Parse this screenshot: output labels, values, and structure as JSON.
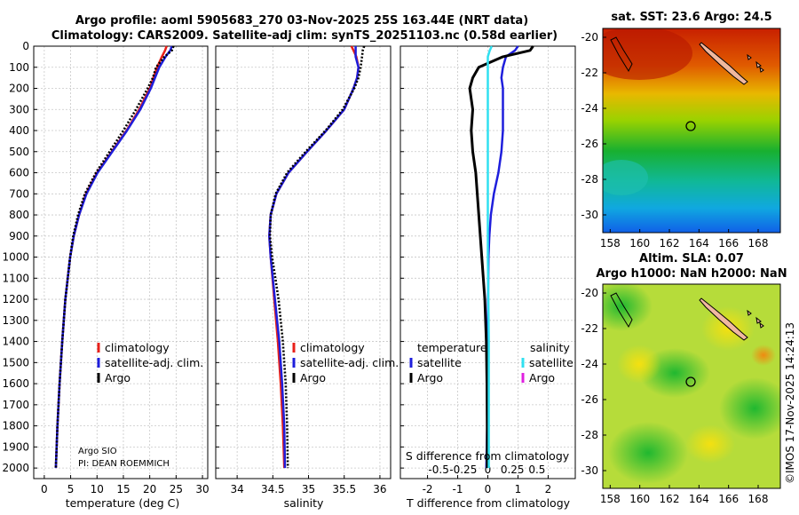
{
  "title_line1": "Argo profile: aoml 5905683_270 03-Nov-2025 25S 163.44E (NRT data)",
  "title_line2": "Climatology: CARS2009. Satellite-adj clim: synTS_20251103.nc (0.58d earlier)",
  "footer_stamp": "©IMOS 17-Nov-2025 14:24:13",
  "colors": {
    "climatology": "#e8201a",
    "satellite": "#1e1edc",
    "argo": "#000000",
    "sat_salinity": "#30e0f0",
    "argo_salinity": "#e020e0"
  },
  "chart_data": [
    {
      "type": "line",
      "name": "temperature",
      "xlabel": "temperature (deg C)",
      "ylabel": "",
      "xlim": [
        -2,
        31
      ],
      "ylim": [
        2050,
        0
      ],
      "xticks": [
        "0",
        "5",
        "10",
        "15",
        "20",
        "25",
        "30"
      ],
      "xtick_values": [
        0,
        5,
        10,
        15,
        20,
        25,
        30
      ],
      "yticks": [
        "0",
        "100",
        "200",
        "300",
        "400",
        "500",
        "600",
        "700",
        "800",
        "900",
        "1000",
        "1100",
        "1200",
        "1300",
        "1400",
        "1500",
        "1600",
        "1700",
        "1800",
        "1900",
        "2000"
      ],
      "ytick_values": [
        0,
        100,
        200,
        300,
        400,
        500,
        600,
        700,
        800,
        900,
        1000,
        1100,
        1200,
        1300,
        1400,
        1500,
        1600,
        1700,
        1800,
        1900,
        2000
      ],
      "depth": [
        0,
        20,
        50,
        100,
        150,
        200,
        300,
        400,
        500,
        600,
        700,
        800,
        900,
        1000,
        1200,
        1400,
        1600,
        1800,
        2000
      ],
      "series": [
        {
          "name": "climatology",
          "values": [
            23.2,
            22.9,
            22.3,
            21.4,
            20.7,
            20.0,
            18.0,
            15.6,
            12.8,
            10.0,
            7.9,
            6.6,
            5.6,
            4.9,
            4.0,
            3.4,
            2.9,
            2.5,
            2.2
          ]
        },
        {
          "name": "satellite-adj. clim.",
          "values": [
            24.2,
            23.9,
            23.0,
            21.8,
            21.0,
            20.2,
            18.2,
            15.7,
            12.9,
            10.1,
            8.0,
            6.6,
            5.6,
            4.9,
            4.0,
            3.4,
            2.9,
            2.5,
            2.2
          ]
        },
        {
          "name": "Argo",
          "values": [
            24.5,
            24.2,
            22.8,
            21.2,
            20.6,
            19.6,
            17.4,
            15.0,
            12.4,
            9.8,
            7.7,
            6.4,
            5.5,
            4.9,
            4.0,
            3.4,
            2.9,
            2.5,
            2.2
          ]
        }
      ],
      "legend": [
        "climatology",
        "satellite-adj. clim.",
        "Argo"
      ],
      "annotation_1": "Argo SIO",
      "annotation_2": "PI: DEAN ROEMMICH"
    },
    {
      "type": "line",
      "name": "salinity",
      "xlabel": "salinity",
      "xlim": [
        33.7,
        36.15
      ],
      "ylim": [
        2050,
        0
      ],
      "xticks": [
        "34",
        "34.5",
        "35",
        "35.5",
        "36"
      ],
      "xtick_values": [
        34,
        34.5,
        35,
        35.5,
        36
      ],
      "depth": [
        0,
        20,
        50,
        100,
        150,
        200,
        300,
        400,
        500,
        600,
        700,
        800,
        900,
        1000,
        1200,
        1400,
        1600,
        1800,
        2000
      ],
      "series": [
        {
          "name": "climatology",
          "values": [
            35.6,
            35.63,
            35.67,
            35.7,
            35.68,
            35.63,
            35.5,
            35.25,
            34.98,
            34.72,
            34.55,
            34.47,
            34.45,
            34.47,
            34.52,
            34.57,
            34.61,
            34.64,
            34.66
          ]
        },
        {
          "name": "satellite-adj. clim.",
          "values": [
            35.66,
            35.66,
            35.66,
            35.7,
            35.68,
            35.63,
            35.5,
            35.25,
            34.98,
            34.72,
            34.55,
            34.47,
            34.45,
            34.47,
            34.53,
            34.59,
            34.63,
            34.66,
            34.67
          ]
        },
        {
          "name": "Argo",
          "values": [
            35.78,
            35.76,
            35.75,
            35.73,
            35.7,
            35.64,
            35.48,
            35.24,
            34.96,
            34.7,
            34.54,
            34.47,
            34.46,
            34.49,
            34.58,
            34.64,
            34.68,
            34.7,
            34.71
          ]
        }
      ],
      "legend": [
        "climatology",
        "satellite-adj. clim.",
        "Argo"
      ]
    },
    {
      "type": "line",
      "name": "differences",
      "xlabel": "T difference from climatology",
      "xlabel2": "S difference from climatology",
      "xlim": [
        -2.9,
        2.9
      ],
      "ylim": [
        2050,
        0
      ],
      "xticks": [
        "-2",
        "-1",
        "0",
        "1",
        "2"
      ],
      "xtick_values": [
        -2,
        -1,
        0,
        1,
        2
      ],
      "top_xticks": [
        "-0.5",
        "-0.25",
        "0",
        "0.25",
        "0.5"
      ],
      "top_xtick_values": [
        -0.5,
        -0.25,
        0,
        0.25,
        0.5
      ],
      "depth": [
        0,
        20,
        50,
        100,
        150,
        200,
        300,
        400,
        500,
        600,
        700,
        800,
        900,
        1000,
        1200,
        1400,
        1600,
        1800,
        2000
      ],
      "series": [
        {
          "name": "T satellite",
          "values": [
            1.0,
            0.9,
            0.6,
            0.5,
            0.45,
            0.5,
            0.5,
            0.5,
            0.45,
            0.35,
            0.2,
            0.1,
            0.05,
            0.02,
            0.01,
            0.0,
            0.0,
            -0.02,
            -0.05
          ]
        },
        {
          "name": "T Argo",
          "values": [
            1.5,
            1.4,
            0.5,
            -0.3,
            -0.5,
            -0.6,
            -0.5,
            -0.55,
            -0.5,
            -0.4,
            -0.35,
            -0.3,
            -0.25,
            -0.2,
            -0.1,
            -0.05,
            -0.03,
            -0.02,
            -0.02
          ]
        },
        {
          "name": "S satellite",
          "values": [
            0.04,
            0.02,
            0.0,
            0.0,
            0.0,
            0.0,
            0.0,
            0.0,
            0.0,
            0.0,
            0.0,
            0.0,
            0.0,
            0.0,
            0.005,
            0.01,
            0.01,
            0.01,
            0.01
          ]
        }
      ],
      "legend_temperature_title": "temperature",
      "legend_salinity_title": "salinity",
      "legend_temperature": [
        "satellite",
        "Argo"
      ],
      "legend_salinity": [
        "satellite",
        "Argo"
      ]
    },
    {
      "type": "heatmap",
      "name": "sst_map",
      "title": "sat. SST: 23.6 Argo: 24.5",
      "xlim": [
        157.5,
        169.5
      ],
      "ylim": [
        -31,
        -19.5
      ],
      "xticks": [
        "158",
        "160",
        "162",
        "164",
        "166",
        "168"
      ],
      "xtick_values": [
        158,
        160,
        162,
        164,
        166,
        168
      ],
      "yticks": [
        "-20",
        "-22",
        "-24",
        "-26",
        "-28",
        "-30"
      ],
      "ytick_values": [
        -20,
        -22,
        -24,
        -26,
        -28,
        -30
      ],
      "marker": [
        163.44,
        -25
      ]
    },
    {
      "type": "heatmap",
      "name": "sla_map",
      "title": "Altim. SLA: 0.07",
      "subtitle": "Argo h1000: NaN h2000: NaN",
      "xlim": [
        157.5,
        169.5
      ],
      "ylim": [
        -31,
        -19.5
      ],
      "xticks": [
        "158",
        "160",
        "162",
        "164",
        "166",
        "168"
      ],
      "xtick_values": [
        158,
        160,
        162,
        164,
        166,
        168
      ],
      "yticks": [
        "-20",
        "-22",
        "-24",
        "-26",
        "-28",
        "-30"
      ],
      "ytick_values": [
        -20,
        -22,
        -24,
        -26,
        -28,
        -30
      ],
      "marker": [
        163.44,
        -25
      ]
    }
  ]
}
